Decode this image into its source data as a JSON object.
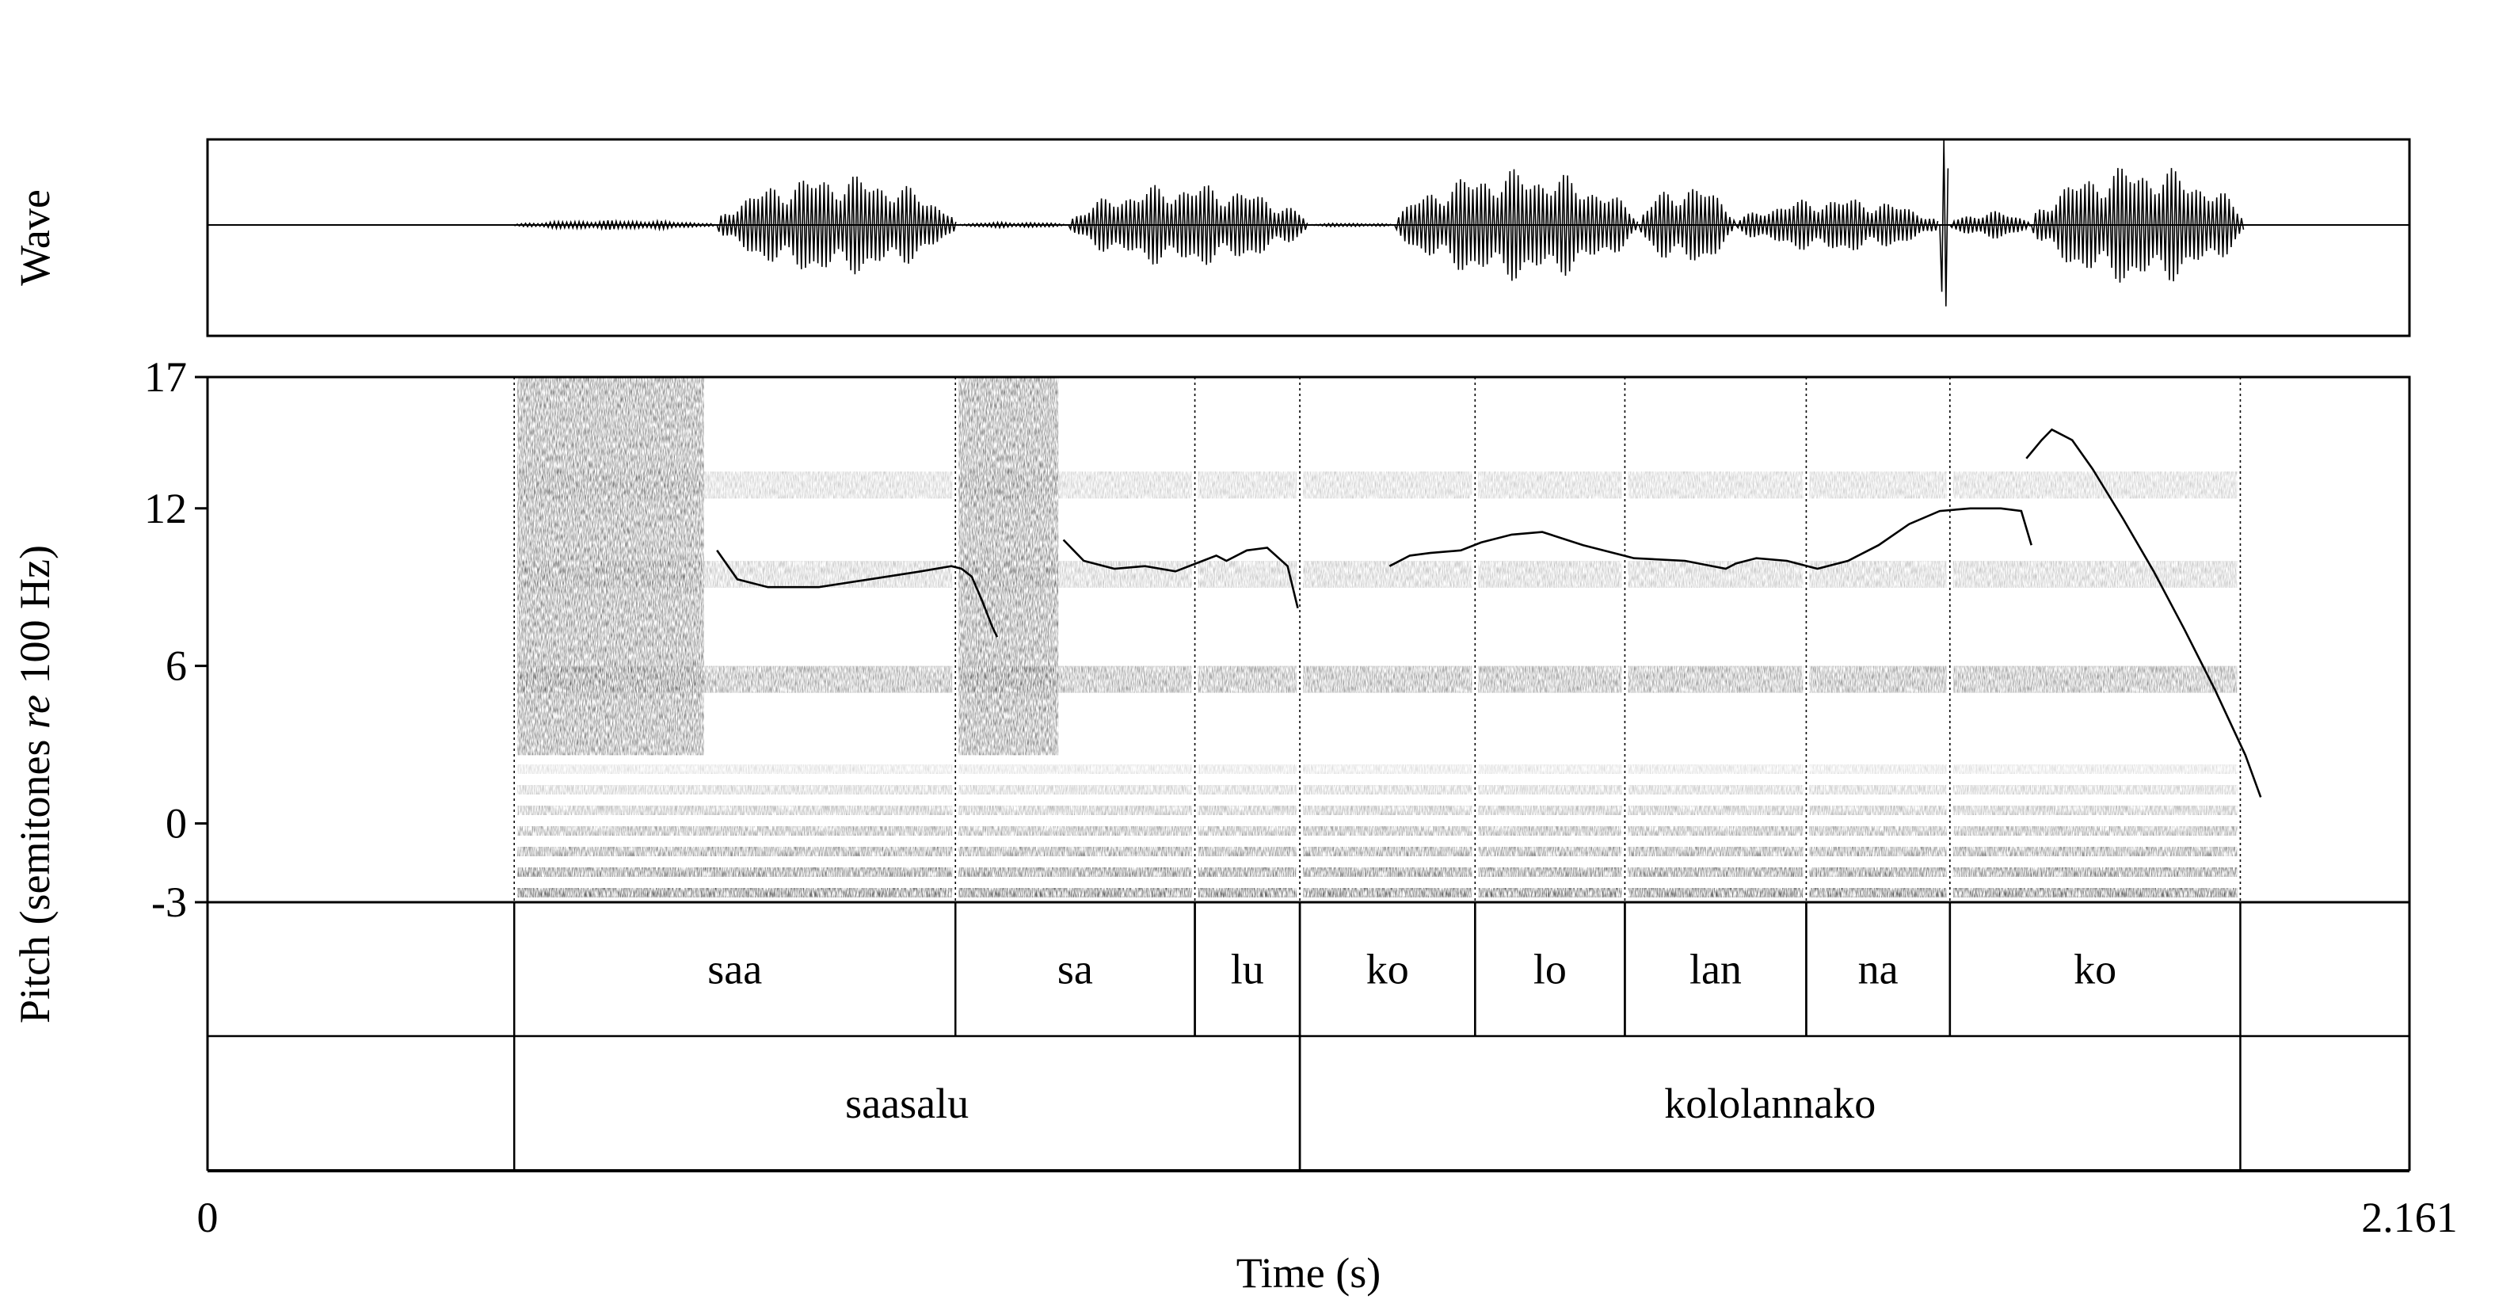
{
  "chart_data": {
    "type": "line",
    "panels": {
      "wave_label": "Wave",
      "ylabel_prefix": "Pitch (semitones ",
      "ylabel_italic": "re",
      "ylabel_suffix": " 100 Hz)",
      "xlabel": "Time (s)"
    },
    "xlim": [
      0,
      2.161
    ],
    "x_ticks": [
      "0",
      "2.161"
    ],
    "ylim": [
      -3,
      17
    ],
    "y_ticks": [
      {
        "value": 17,
        "label": "17"
      },
      {
        "value": 12,
        "label": "12"
      },
      {
        "value": 6,
        "label": "6"
      },
      {
        "value": 0,
        "label": "0"
      },
      {
        "value": -3,
        "label": "-3"
      }
    ],
    "boundaries": [
      0.301,
      0.734,
      0.969,
      1.072,
      1.244,
      1.391,
      1.569,
      1.71,
      1.995
    ],
    "syllable_tier": [
      {
        "text": "saa",
        "start": 0.301,
        "end": 0.734
      },
      {
        "text": "sa",
        "start": 0.734,
        "end": 0.969
      },
      {
        "text": "lu",
        "start": 0.969,
        "end": 1.072
      },
      {
        "text": "ko",
        "start": 1.072,
        "end": 1.244
      },
      {
        "text": "lo",
        "start": 1.244,
        "end": 1.391
      },
      {
        "text": "lan",
        "start": 1.391,
        "end": 1.569
      },
      {
        "text": "na",
        "start": 1.569,
        "end": 1.71
      },
      {
        "text": "ko",
        "start": 1.71,
        "end": 1.995
      }
    ],
    "word_tier": [
      {
        "text": "saasalu",
        "start": 0.301,
        "end": 1.072
      },
      {
        "text": "kololannako",
        "start": 1.072,
        "end": 1.995
      }
    ],
    "series": [
      {
        "points": [
          [
            0.5,
            10.4
          ],
          [
            0.52,
            9.3
          ],
          [
            0.55,
            9.0
          ],
          [
            0.6,
            9.0
          ],
          [
            0.65,
            9.3
          ],
          [
            0.7,
            9.6
          ],
          [
            0.73,
            9.8
          ],
          [
            0.74,
            9.7
          ],
          [
            0.75,
            9.4
          ],
          [
            0.76,
            8.5
          ],
          [
            0.77,
            7.5
          ],
          [
            0.775,
            7.1
          ]
        ]
      },
      {
        "points": [
          [
            0.84,
            10.8
          ],
          [
            0.86,
            10.0
          ],
          [
            0.89,
            9.7
          ],
          [
            0.92,
            9.8
          ],
          [
            0.95,
            9.6
          ],
          [
            0.97,
            9.9
          ],
          [
            0.99,
            10.2
          ],
          [
            1.0,
            10.0
          ],
          [
            1.02,
            10.4
          ],
          [
            1.04,
            10.5
          ],
          [
            1.06,
            9.8
          ],
          [
            1.07,
            8.2
          ]
        ]
      },
      {
        "points": [
          [
            1.16,
            9.8
          ],
          [
            1.18,
            10.2
          ],
          [
            1.2,
            10.3
          ],
          [
            1.23,
            10.4
          ],
          [
            1.25,
            10.7
          ],
          [
            1.28,
            11.0
          ],
          [
            1.31,
            11.1
          ],
          [
            1.35,
            10.6
          ],
          [
            1.4,
            10.1
          ],
          [
            1.45,
            10.0
          ],
          [
            1.49,
            9.7
          ],
          [
            1.5,
            9.9
          ],
          [
            1.52,
            10.1
          ],
          [
            1.55,
            10.0
          ],
          [
            1.58,
            9.7
          ],
          [
            1.61,
            10.0
          ],
          [
            1.64,
            10.6
          ],
          [
            1.67,
            11.4
          ],
          [
            1.7,
            11.9
          ],
          [
            1.73,
            12.0
          ],
          [
            1.76,
            12.0
          ],
          [
            1.78,
            11.9
          ],
          [
            1.79,
            10.6
          ]
        ]
      },
      {
        "points": [
          [
            1.785,
            13.9
          ],
          [
            1.8,
            14.6
          ],
          [
            1.81,
            15.0
          ],
          [
            1.83,
            14.6
          ],
          [
            1.85,
            13.5
          ],
          [
            1.88,
            11.6
          ],
          [
            1.91,
            9.6
          ],
          [
            1.94,
            7.4
          ],
          [
            1.97,
            5.1
          ],
          [
            2.0,
            2.6
          ],
          [
            2.015,
            1.0
          ]
        ]
      }
    ],
    "waveform": {
      "segments": [
        {
          "start": 0.3,
          "end": 0.5,
          "amp": 0.05
        },
        {
          "start": 0.5,
          "end": 0.735,
          "amp": 0.55
        },
        {
          "start": 0.735,
          "end": 0.845,
          "amp": 0.03
        },
        {
          "start": 0.845,
          "end": 1.08,
          "amp": 0.45
        },
        {
          "start": 1.08,
          "end": 1.165,
          "amp": 0.02
        },
        {
          "start": 1.165,
          "end": 1.405,
          "amp": 0.6
        },
        {
          "start": 1.405,
          "end": 1.5,
          "amp": 0.45
        },
        {
          "start": 1.5,
          "end": 1.7,
          "amp": 0.3
        },
        {
          "start": 1.7,
          "end": 1.71,
          "amp": 0.95
        },
        {
          "start": 1.71,
          "end": 1.79,
          "amp": 0.15
        },
        {
          "start": 1.79,
          "end": 2.0,
          "amp": 0.65
        }
      ]
    }
  }
}
